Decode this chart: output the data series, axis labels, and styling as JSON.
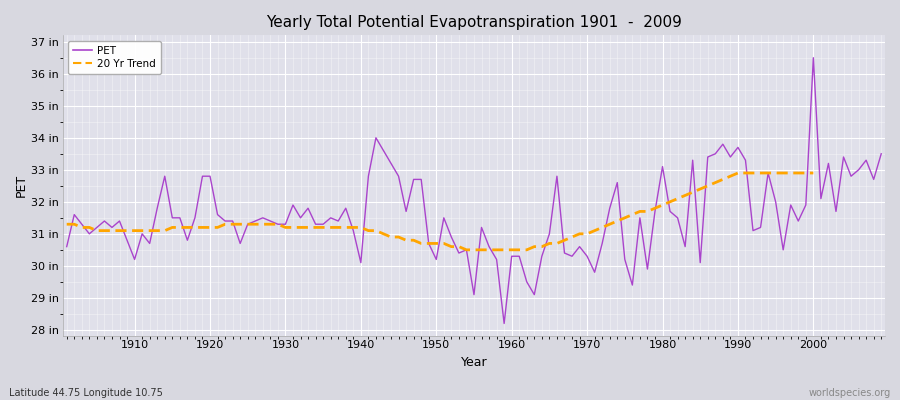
{
  "title": "Yearly Total Potential Evapotranspiration 1901  -  2009",
  "xlabel": "Year",
  "ylabel": "PET",
  "subtitle_left": "Latitude 44.75 Longitude 10.75",
  "subtitle_right": "worldspecies.org",
  "pet_color": "#aa44cc",
  "trend_color": "#ffa500",
  "bg_color": "#d8d8e0",
  "plot_bg_color": "#e0e0ea",
  "ylim": [
    27.8,
    37.2
  ],
  "yticks": [
    28,
    29,
    30,
    31,
    32,
    33,
    34,
    35,
    36,
    37
  ],
  "ytick_labels": [
    "28 in",
    "29 in",
    "30 in",
    "31 in",
    "32 in",
    "33 in",
    "34 in",
    "35 in",
    "36 in",
    "37 in"
  ],
  "xlim": [
    1900.5,
    2009.5
  ],
  "years": [
    1901,
    1902,
    1903,
    1904,
    1905,
    1906,
    1907,
    1908,
    1909,
    1910,
    1911,
    1912,
    1913,
    1914,
    1915,
    1916,
    1917,
    1918,
    1919,
    1920,
    1921,
    1922,
    1923,
    1924,
    1925,
    1926,
    1927,
    1928,
    1929,
    1930,
    1931,
    1932,
    1933,
    1934,
    1935,
    1936,
    1937,
    1938,
    1939,
    1940,
    1941,
    1942,
    1943,
    1944,
    1945,
    1946,
    1947,
    1948,
    1949,
    1950,
    1951,
    1952,
    1953,
    1954,
    1955,
    1956,
    1957,
    1958,
    1959,
    1960,
    1961,
    1962,
    1963,
    1964,
    1965,
    1966,
    1967,
    1968,
    1969,
    1970,
    1971,
    1972,
    1973,
    1974,
    1975,
    1976,
    1977,
    1978,
    1979,
    1980,
    1981,
    1982,
    1983,
    1984,
    1985,
    1986,
    1987,
    1988,
    1989,
    1990,
    1991,
    1992,
    1993,
    1994,
    1995,
    1996,
    1997,
    1998,
    1999,
    2000,
    2001,
    2002,
    2003,
    2004,
    2005,
    2006,
    2007,
    2008,
    2009
  ],
  "pet": [
    30.6,
    31.6,
    31.3,
    31.0,
    31.2,
    31.4,
    31.2,
    31.4,
    30.8,
    30.2,
    31.0,
    30.7,
    31.8,
    32.8,
    31.5,
    31.5,
    30.8,
    31.5,
    32.8,
    32.8,
    31.6,
    31.4,
    31.4,
    30.7,
    31.3,
    31.4,
    31.5,
    31.4,
    31.3,
    31.3,
    31.9,
    31.5,
    31.8,
    31.3,
    31.3,
    31.5,
    31.4,
    31.8,
    31.1,
    30.1,
    32.8,
    34.0,
    33.6,
    33.2,
    32.8,
    31.7,
    32.7,
    32.7,
    30.7,
    30.2,
    31.5,
    30.9,
    30.4,
    30.5,
    29.1,
    31.2,
    30.6,
    30.2,
    28.2,
    30.3,
    30.3,
    29.5,
    29.1,
    30.3,
    31.0,
    32.8,
    30.4,
    30.3,
    30.6,
    30.3,
    29.8,
    30.7,
    31.8,
    32.6,
    30.2,
    29.4,
    31.5,
    29.9,
    31.7,
    33.1,
    31.7,
    31.5,
    30.6,
    33.3,
    30.1,
    33.4,
    33.5,
    33.8,
    33.4,
    33.7,
    33.3,
    31.1,
    31.2,
    32.9,
    32.0,
    30.5,
    31.9,
    31.4,
    31.9,
    36.5,
    32.1,
    33.2,
    31.7,
    33.4,
    32.8,
    33.0,
    33.3,
    32.7,
    33.5
  ],
  "trend": [
    31.3,
    31.3,
    31.2,
    31.2,
    31.1,
    31.1,
    31.1,
    31.1,
    31.1,
    31.1,
    31.1,
    31.1,
    31.1,
    31.1,
    31.2,
    31.2,
    31.2,
    31.2,
    31.2,
    31.2,
    31.2,
    31.3,
    31.3,
    31.3,
    31.3,
    31.3,
    31.3,
    31.3,
    31.3,
    31.2,
    31.2,
    31.2,
    31.2,
    31.2,
    31.2,
    31.2,
    31.2,
    31.2,
    31.2,
    31.2,
    31.1,
    31.1,
    31.0,
    30.9,
    30.9,
    30.8,
    30.8,
    30.7,
    30.7,
    30.7,
    30.7,
    30.6,
    30.6,
    30.5,
    30.5,
    30.5,
    30.5,
    30.5,
    30.5,
    30.5,
    30.5,
    30.5,
    30.6,
    30.6,
    30.7,
    30.7,
    30.8,
    30.9,
    31.0,
    31.0,
    31.1,
    31.2,
    31.3,
    31.4,
    31.5,
    31.6,
    31.7,
    31.7,
    31.8,
    31.9,
    32.0,
    32.1,
    32.2,
    32.3,
    32.4,
    32.5,
    32.6,
    32.7,
    32.8,
    32.9,
    32.9,
    32.9,
    32.9,
    32.9,
    32.9,
    32.9,
    32.9,
    32.9,
    32.9,
    32.9,
    null,
    null,
    null,
    null,
    null,
    null,
    null,
    null,
    null
  ]
}
